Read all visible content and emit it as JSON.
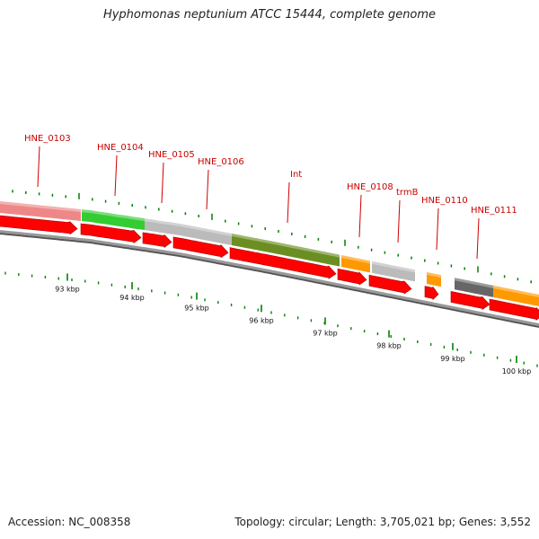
{
  "title": "Hyphomonas neptunium ATCC 15444, complete genome",
  "footer": {
    "accession": "Accession: NC_008358",
    "stats": "Topology: circular; Length: 3,705,021 bp; Genes: 3,552"
  },
  "feature_colors": {
    "pink": "#ee8888",
    "green": "#33cc33",
    "light_gray": "#bbbbbb",
    "olive": "#6b8e23",
    "orange": "#ff9900",
    "dark_gray": "#666666",
    "cds_red": "#ff0000",
    "tick_green": "#008000",
    "label_red": "#cc0000",
    "backbone": "#888888"
  },
  "genes": [
    {
      "name": "HNE_0103",
      "color": "pink"
    },
    {
      "name": "HNE_0104",
      "color": "green"
    },
    {
      "name": "HNE_0105",
      "color": "light_gray"
    },
    {
      "name": "HNE_0106",
      "color": "light_gray"
    },
    {
      "name": "Int",
      "color": "olive"
    },
    {
      "name": "HNE_0108",
      "color": "orange"
    },
    {
      "name": "trmB",
      "color": "light_gray"
    },
    {
      "name": "HNE_0110",
      "color": "orange"
    },
    {
      "name": "HNE_0111",
      "color": "dark_gray"
    },
    {
      "name": "",
      "color": "orange"
    }
  ],
  "scale": {
    "unit": "kbp",
    "labels": [
      "93 kbp",
      "94 kbp",
      "95 kbp",
      "96 kbp",
      "97 kbp",
      "98 kbp",
      "99 kbp",
      "100 kbp"
    ]
  }
}
